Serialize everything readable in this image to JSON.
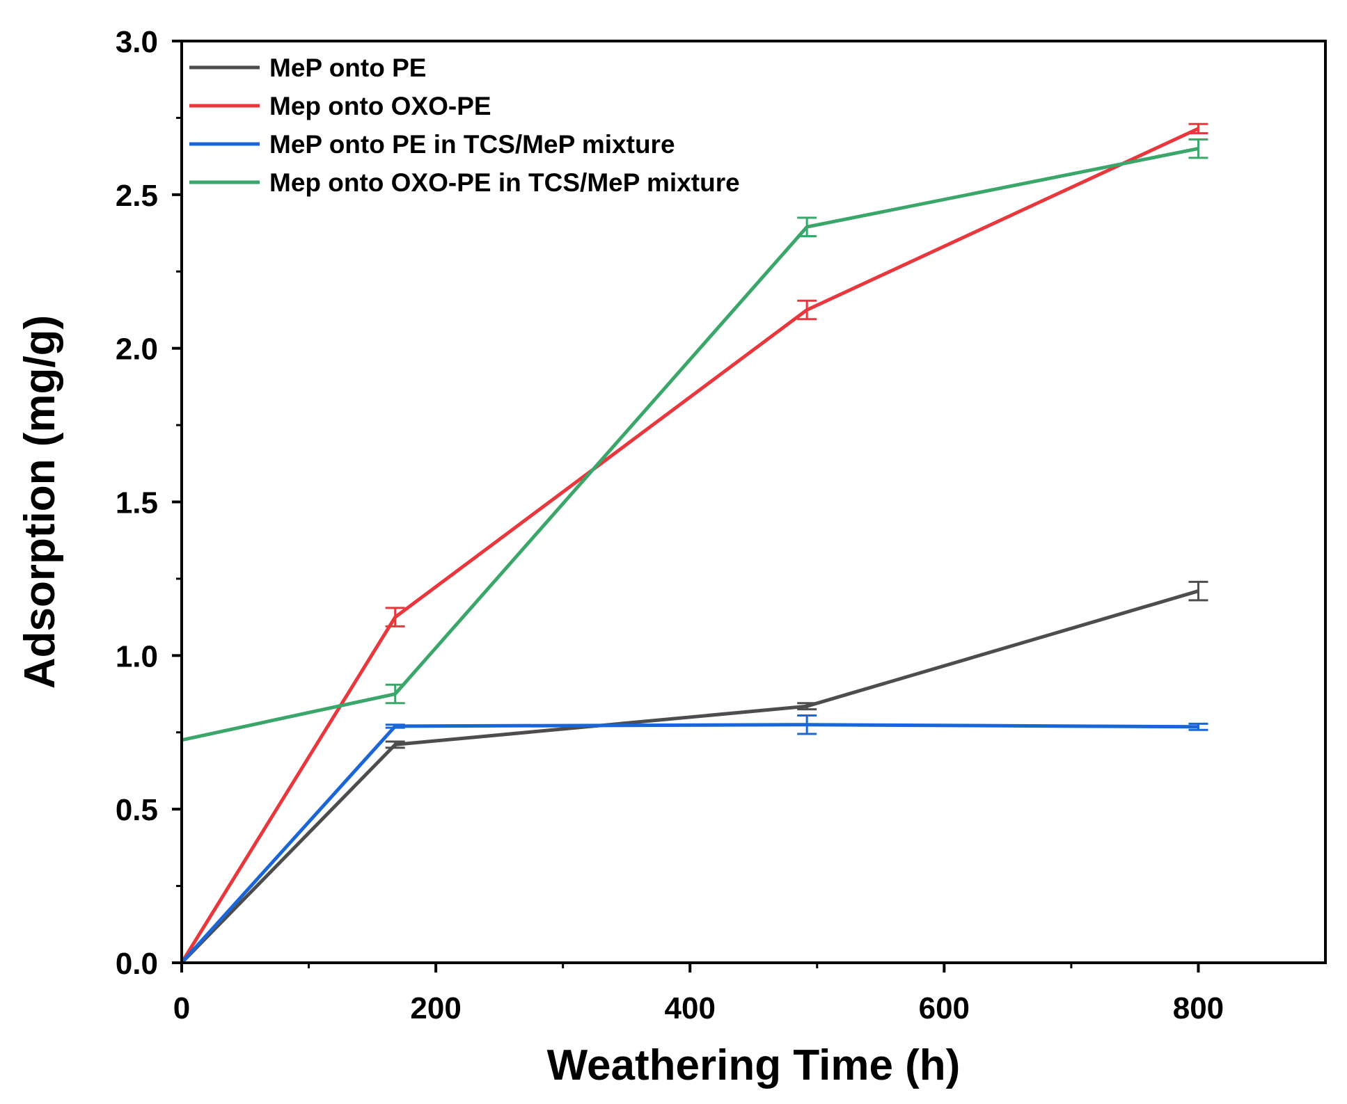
{
  "chart_data": {
    "type": "line",
    "xlabel": "Weathering Time (h)",
    "ylabel": "Adsorption (mg/g)",
    "xlim": [
      0,
      900
    ],
    "ylim": [
      0,
      3.0
    ],
    "xticks": [
      0,
      200,
      400,
      600,
      800
    ],
    "xtick_labels": [
      "0",
      "200",
      "400",
      "600",
      "800"
    ],
    "yticks": [
      0,
      0.5,
      1.0,
      1.5,
      2.0,
      2.5,
      3.0
    ],
    "ytick_labels": [
      "0.0",
      "0.5",
      "1.0",
      "1.5",
      "2.0",
      "2.5",
      "3.0"
    ],
    "grid": false,
    "legend_position": "top-left",
    "series": [
      {
        "name": "MeP onto PE",
        "color": "#4d4d4d",
        "x": [
          0,
          168,
          492,
          800
        ],
        "y": [
          0,
          0.71,
          0.835,
          1.21
        ],
        "err": [
          0,
          0.01,
          0.01,
          0.03
        ]
      },
      {
        "name": "Mep onto OXO-PE",
        "color": "#e8383d",
        "x": [
          0,
          168,
          492,
          800
        ],
        "y": [
          0,
          1.125,
          2.125,
          2.715
        ],
        "err": [
          0,
          0.03,
          0.03,
          0.015
        ]
      },
      {
        "name": "MeP onto PE in TCS/MeP mixture",
        "color": "#1a66d6",
        "x": [
          0,
          168,
          492,
          800
        ],
        "y": [
          0,
          0.77,
          0.775,
          0.768
        ],
        "err": [
          0,
          0.005,
          0.03,
          0.01
        ]
      },
      {
        "name": "Mep onto OXO-PE in TCS/MeP mixture",
        "color": "#3aa66a",
        "x": [
          0,
          168,
          492,
          800
        ],
        "y": [
          0.725,
          0.875,
          2.395,
          2.65
        ],
        "err": [
          0,
          0.03,
          0.03,
          0.03
        ]
      }
    ]
  }
}
